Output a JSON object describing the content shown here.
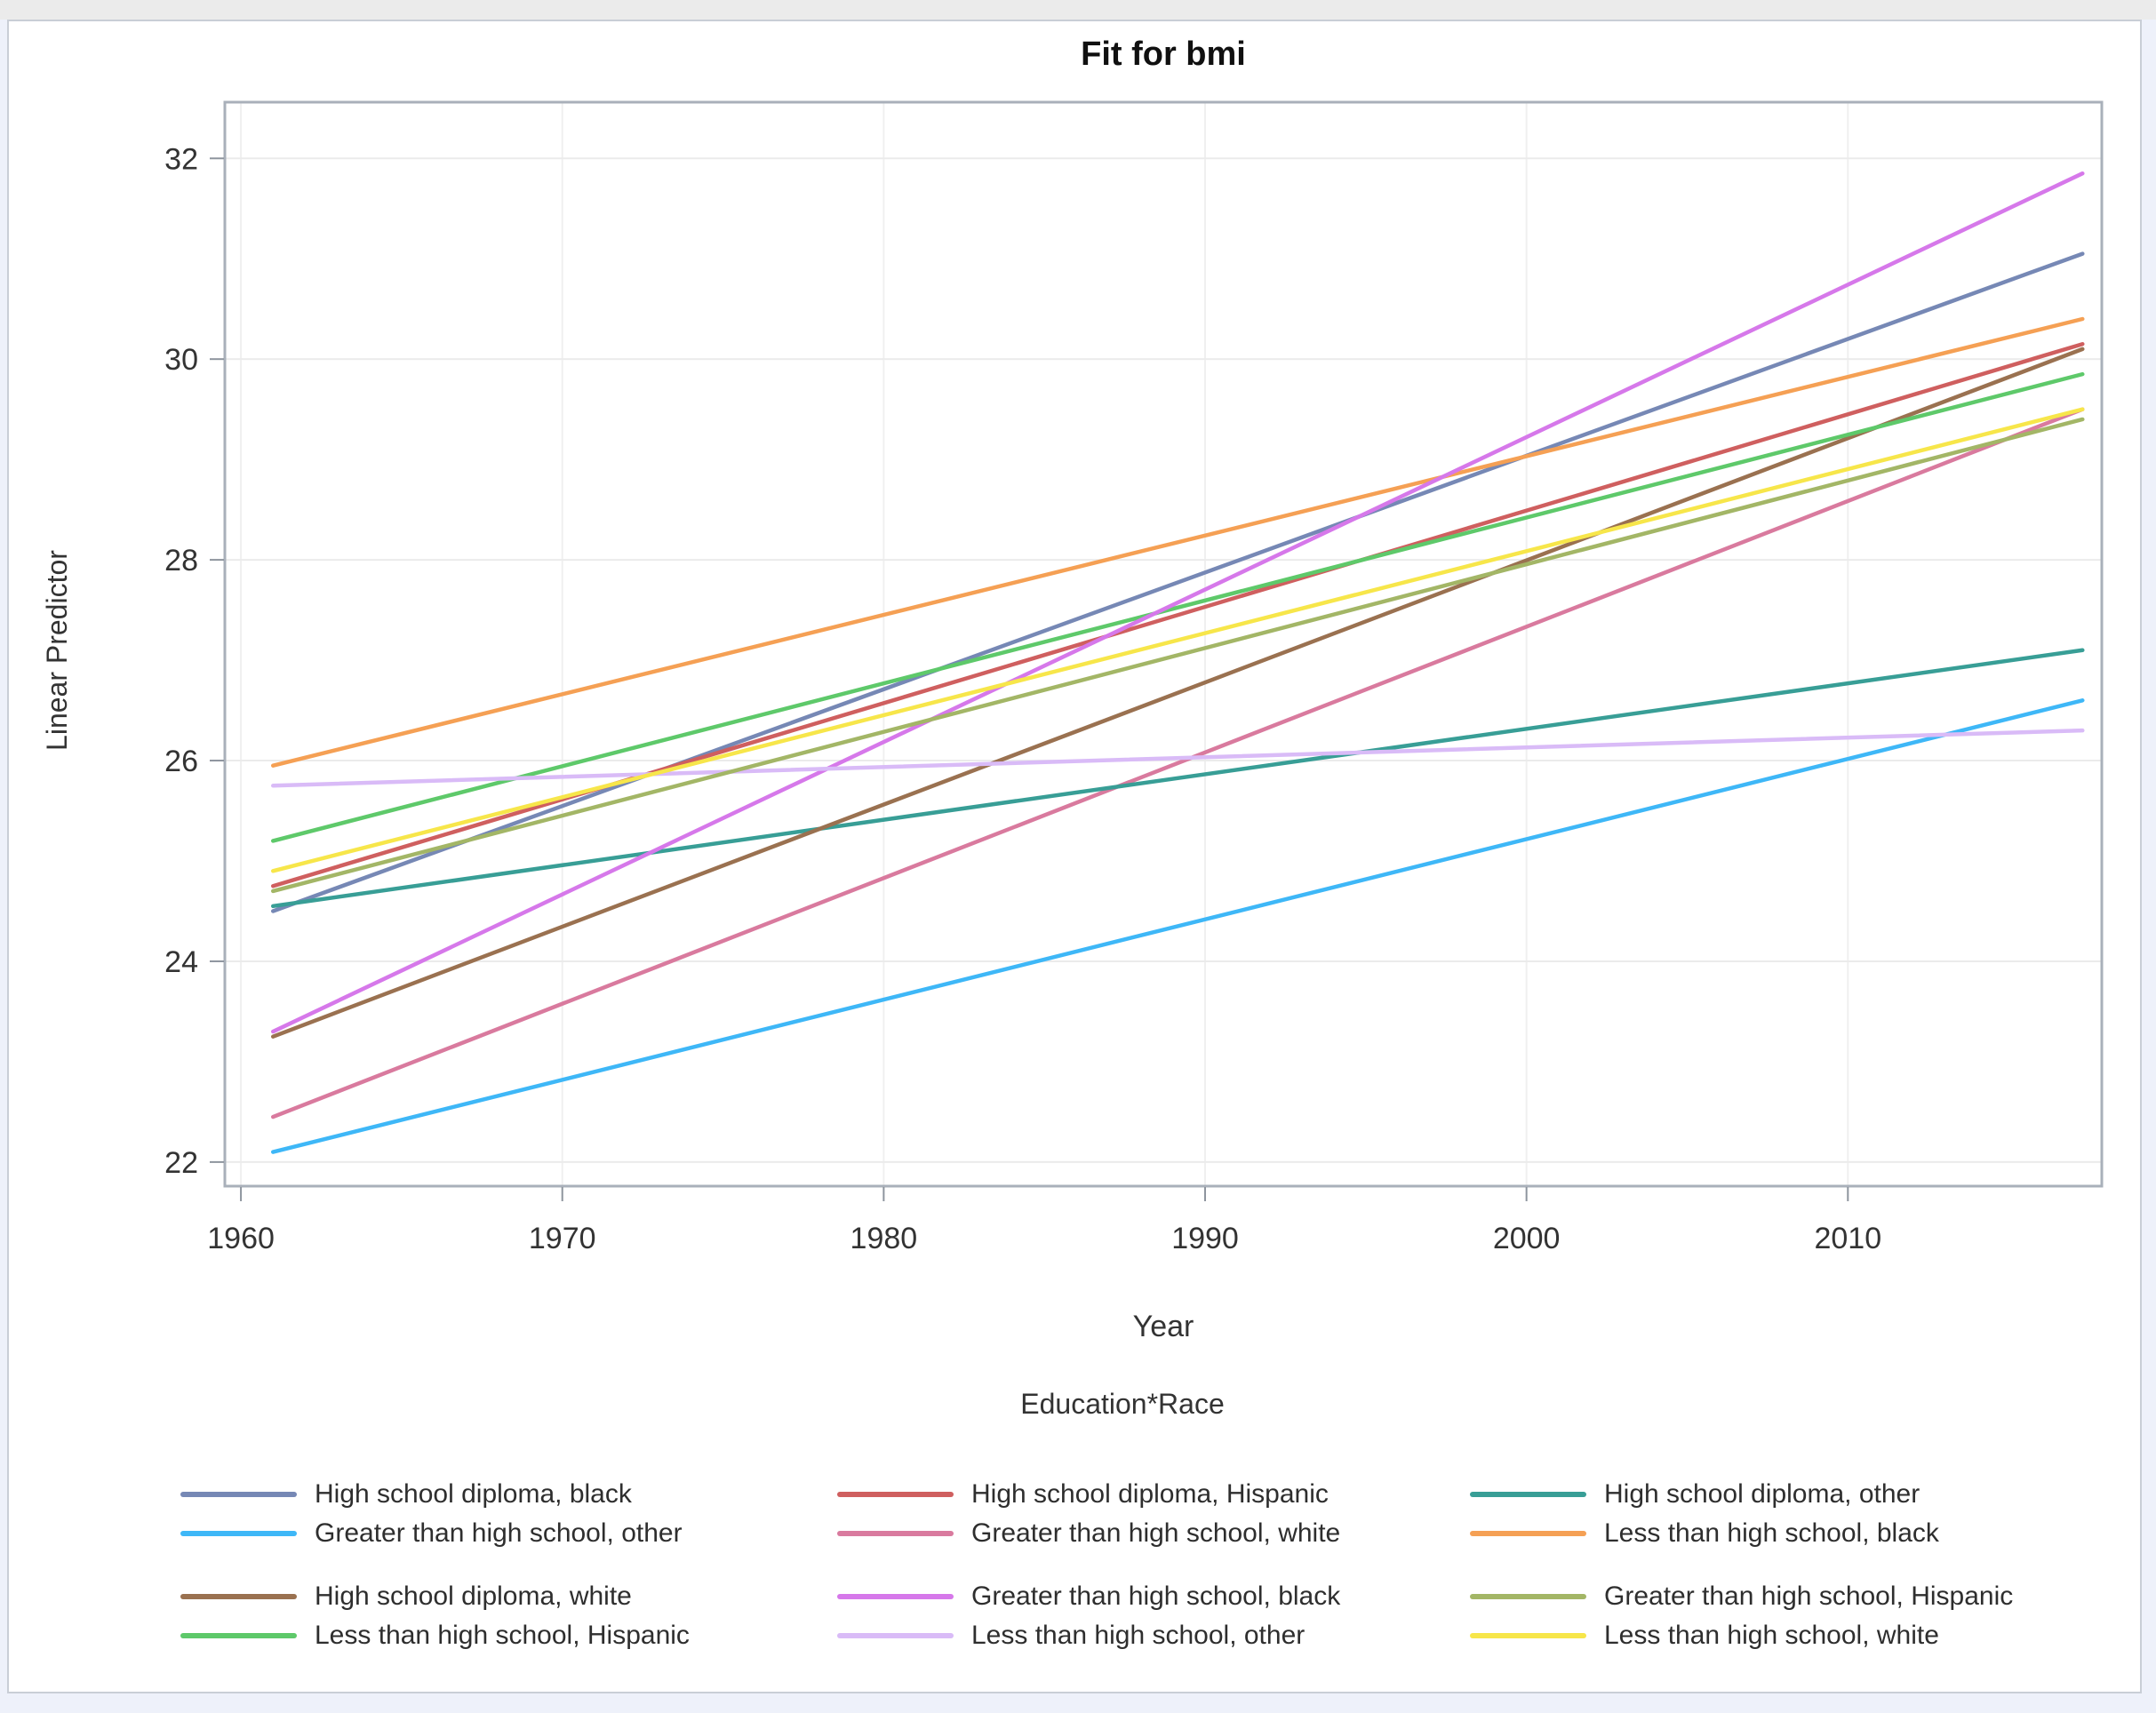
{
  "chart_data": {
    "type": "line",
    "title": "Fit for bmi",
    "xlabel": "Year",
    "ylabel": "Linear Predictor",
    "xlim": [
      1959.5,
      2017.9
    ],
    "ylim": [
      21.76,
      32.56
    ],
    "x_ticks": [
      1960,
      1970,
      1980,
      1990,
      2000,
      2010
    ],
    "y_ticks": [
      22,
      24,
      26,
      28,
      30,
      32
    ],
    "grid": true,
    "legend_position": "bottom",
    "legend_title": "Education*Race",
    "x": [
      1961,
      2017.3
    ],
    "series": [
      {
        "name": "High school diploma, black",
        "color": "#7688b5",
        "values": [
          24.5,
          31.05
        ]
      },
      {
        "name": "Greater than high school, other",
        "color": "#3eb7f7",
        "values": [
          22.1,
          26.6
        ]
      },
      {
        "name": "High school diploma, Hispanic",
        "color": "#cf5f5f",
        "values": [
          24.75,
          30.15
        ]
      },
      {
        "name": "Greater than high school, white",
        "color": "#d97a9e",
        "values": [
          22.45,
          29.5
        ]
      },
      {
        "name": "High school diploma, other",
        "color": "#389e96",
        "values": [
          24.55,
          27.1
        ]
      },
      {
        "name": "Less than high school, black",
        "color": "#f5a054",
        "values": [
          25.95,
          30.4
        ]
      },
      {
        "name": "High school diploma, white",
        "color": "#9a7150",
        "values": [
          23.25,
          30.1
        ]
      },
      {
        "name": "Less than high school, Hispanic",
        "color": "#5ec96a",
        "values": [
          25.2,
          29.85
        ]
      },
      {
        "name": "Greater than high school, black",
        "color": "#d678ea",
        "values": [
          23.3,
          31.85
        ]
      },
      {
        "name": "Less than high school, other",
        "color": "#d9bbf7",
        "values": [
          25.75,
          26.3
        ]
      },
      {
        "name": "Greater than high school, Hispanic",
        "color": "#a3b666",
        "values": [
          24.7,
          29.4
        ]
      },
      {
        "name": "Less than high school, white",
        "color": "#f7e64a",
        "values": [
          24.9,
          29.5
        ]
      }
    ],
    "legend_groups": [
      [
        [
          "High school diploma, black",
          "High school diploma, Hispanic",
          "High school diploma, other"
        ],
        [
          "Greater than high school, other",
          "Greater than high school, white",
          "Less than high school, black"
        ]
      ],
      [
        [
          "High school diploma, white",
          "Greater than high school, black",
          "Greater than high school, Hispanic"
        ],
        [
          "Less than high school, Hispanic",
          "Less than high school, other",
          "Less than high school, white"
        ]
      ]
    ]
  }
}
